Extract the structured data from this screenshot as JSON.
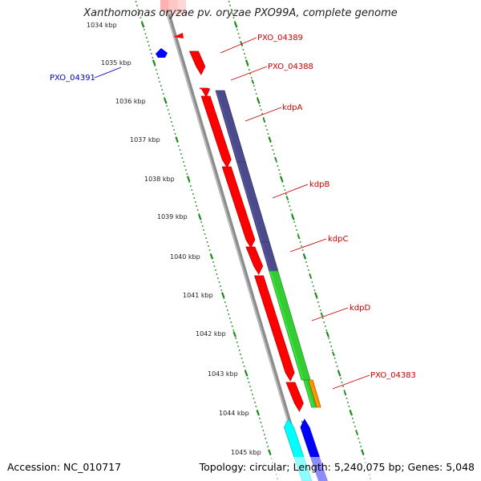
{
  "title": "Xanthomonas oryzae pv. oryzae PXO99A, complete genome",
  "footer": {
    "accession": "Accession: NC_010717",
    "summary": "Topology: circular; Length: 5,240,075 bp; Genes: 5,048"
  },
  "ticks": [
    "1034 kbp",
    "1035 kbp",
    "1036 kbp",
    "1037 kbp",
    "1038 kbp",
    "1039 kbp",
    "1040 kbp",
    "1041 kbp",
    "1042 kbp",
    "1043 kbp",
    "1044 kbp",
    "1045 kbp"
  ],
  "gene_labels": [
    {
      "text": "PXO_04389",
      "color": "#cc0000"
    },
    {
      "text": "PXO_04388",
      "color": "#cc0000"
    },
    {
      "text": "kdpA",
      "color": "#cc0000"
    },
    {
      "text": "kdpB",
      "color": "#cc0000"
    },
    {
      "text": "kdpC",
      "color": "#cc0000"
    },
    {
      "text": "kdpD",
      "color": "#cc0000"
    },
    {
      "text": "PXO_04383",
      "color": "#cc0000"
    },
    {
      "text": "PXO_04391",
      "color": "#0000cc"
    }
  ],
  "colors": {
    "backbone": "#8c8c8c",
    "tick_dots": "#1a8a1a",
    "cds_forward": "#ff0000",
    "cds_reverse": "#0000ff",
    "blast_purple": "#4b4a8c",
    "blast_green": "#33cc33",
    "blast_orange": "#ff8c00",
    "blast_cyan": "#00ffff",
    "label_red": "#cc0000",
    "label_blue": "#0000cc"
  }
}
